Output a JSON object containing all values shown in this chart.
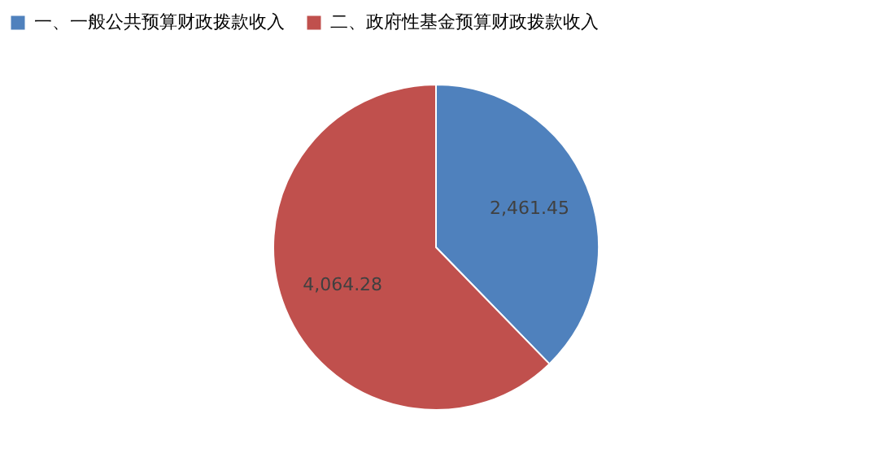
{
  "chart_data": {
    "type": "pie",
    "categories": [
      "一、一般公共预算财政拨款收入",
      "二、政府性基金预算财政拨款收入"
    ],
    "values": [
      2461.45,
      4064.28
    ],
    "colors": [
      "#4f81bd",
      "#c0504d"
    ],
    "value_labels": [
      "2,461.45",
      "4,064.28"
    ],
    "legend": "top"
  }
}
